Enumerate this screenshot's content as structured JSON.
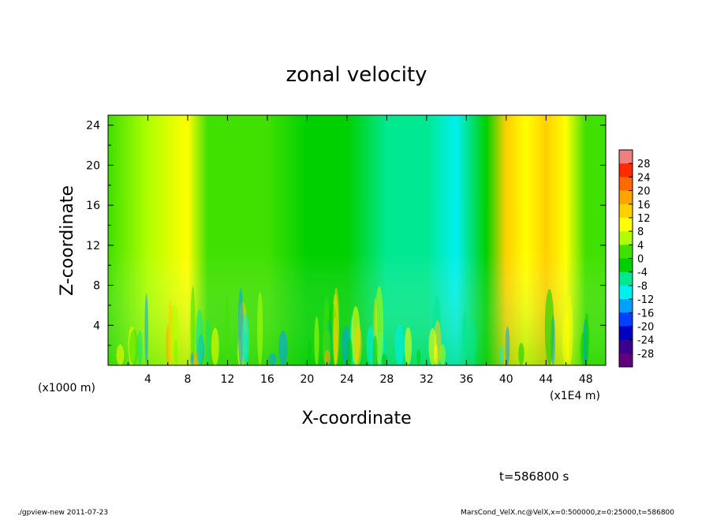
{
  "chart_data": {
    "type": "heatmap",
    "title": "zonal velocity",
    "xlabel": "X-coordinate",
    "ylabel": "Z-coordinate",
    "x_unit_left": "(x1000 m)",
    "x_unit_right": "(x1E4 m)",
    "x_ticks": [
      "4",
      "8",
      "12",
      "16",
      "20",
      "24",
      "28",
      "32",
      "36",
      "40",
      "44",
      "48"
    ],
    "y_ticks": [
      "4",
      "8",
      "12",
      "16",
      "20",
      "24"
    ],
    "xlim": [
      0,
      50
    ],
    "ylim": [
      0,
      25
    ],
    "colorbar_ticks": [
      "28",
      "24",
      "20",
      "16",
      "12",
      "8",
      "4",
      "0",
      "-4",
      "-8",
      "-12",
      "-16",
      "-20",
      "-24",
      "-28"
    ],
    "colorbar_colors": [
      "#f08080",
      "#ff2a00",
      "#ff6a00",
      "#ffa500",
      "#ffd000",
      "#ffff00",
      "#b0ff00",
      "#40e000",
      "#00d000",
      "#00e890",
      "#00f0f0",
      "#00a0ff",
      "#0040ff",
      "#0000c0",
      "#3a0090",
      "#600080"
    ],
    "zonal_profile": [
      {
        "x": 0,
        "v": 2
      },
      {
        "x": 4,
        "v": 6
      },
      {
        "x": 8,
        "v": 9
      },
      {
        "x": 10,
        "v": 2
      },
      {
        "x": 12,
        "v": 0
      },
      {
        "x": 16,
        "v": 2
      },
      {
        "x": 20,
        "v": -2
      },
      {
        "x": 24,
        "v": -4
      },
      {
        "x": 28,
        "v": -8
      },
      {
        "x": 32,
        "v": -6
      },
      {
        "x": 35,
        "v": -11
      },
      {
        "x": 38,
        "v": -2
      },
      {
        "x": 40,
        "v": 13
      },
      {
        "x": 42,
        "v": 10
      },
      {
        "x": 44,
        "v": 14
      },
      {
        "x": 46,
        "v": 7
      },
      {
        "x": 48,
        "v": 1
      },
      {
        "x": 50,
        "v": 0
      }
    ],
    "time_label": "t=586800 s"
  },
  "footer": {
    "left": "./gpview-new  2011-07-23",
    "right": "MarsCond_VelX.nc@VelX,x=0:500000,z=0:25000,t=586800"
  }
}
